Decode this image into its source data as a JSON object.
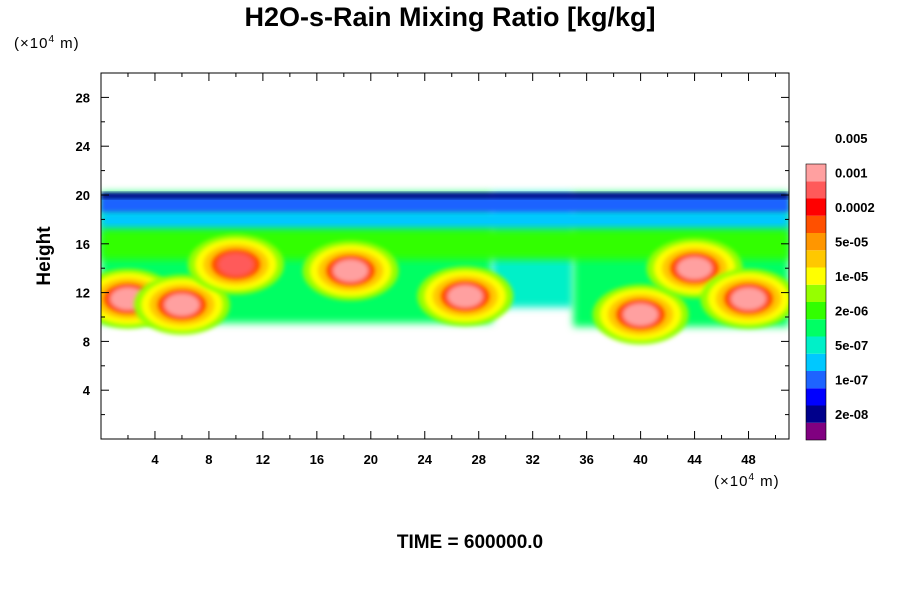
{
  "title": "H2O-s-Rain Mixing Ratio [kg/kg]",
  "x_unit": {
    "prefix": "(×10",
    "exp": "4",
    "suffix": " m)"
  },
  "y_unit": {
    "prefix": "(×10",
    "exp": "4",
    "suffix": " m)"
  },
  "time_label": "TIME = 600000.0",
  "chart_data": {
    "type": "heatmap",
    "title": "H2O-s-Rain Mixing Ratio [kg/kg]",
    "xlabel": "",
    "ylabel": "Height",
    "xlim": [
      0,
      51
    ],
    "ylim": [
      0,
      30
    ],
    "x_ticks": [
      4,
      8,
      12,
      16,
      20,
      24,
      28,
      32,
      36,
      40,
      44,
      48
    ],
    "y_ticks": [
      4,
      8,
      12,
      16,
      20,
      24,
      28
    ],
    "x_minor_step": 2,
    "y_minor_step": 2,
    "grid": false,
    "colorbar": {
      "placement": "right",
      "levels": [
        "2e-08",
        "1e-07",
        "5e-07",
        "2e-06",
        "1e-05",
        "5e-05",
        "0.0002",
        "0.001",
        "0.005"
      ],
      "colors": [
        "#800080",
        "#00008b",
        "#0000ff",
        "#1e64ff",
        "#00c8ff",
        "#00f0c8",
        "#00ff64",
        "#32ff00",
        "#96ff00",
        "#ffff00",
        "#ffc800",
        "#ff9600",
        "#ff5000",
        "#ff0000",
        "#ff5a5a",
        "#ffa0a0"
      ]
    },
    "field": {
      "cloud_top_height": 20.2,
      "main_band": {
        "x": [
          0,
          29
        ],
        "bottom": 9.5
      },
      "gap": {
        "x": [
          29,
          35
        ],
        "bottom": 10.8
      },
      "east_band": {
        "x": [
          35,
          51
        ],
        "bottom": 9.2
      },
      "cores": [
        {
          "x": 2,
          "y": 11.5,
          "level": "0.005"
        },
        {
          "x": 6,
          "y": 11,
          "level": "0.005"
        },
        {
          "x": 10,
          "y": 14.3,
          "level": "0.0002"
        },
        {
          "x": 18.5,
          "y": 13.8,
          "level": "0.001"
        },
        {
          "x": 27,
          "y": 11.7,
          "level": "0.001"
        },
        {
          "x": 40,
          "y": 10.2,
          "level": "0.005"
        },
        {
          "x": 44,
          "y": 14,
          "level": "0.001"
        },
        {
          "x": 48,
          "y": 11.5,
          "level": "0.005"
        }
      ]
    }
  }
}
